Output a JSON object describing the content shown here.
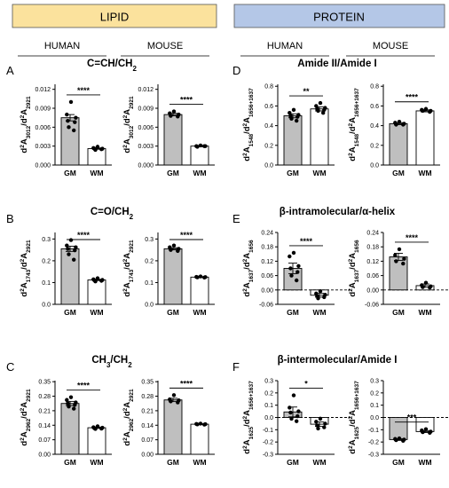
{
  "headers": {
    "lipid": "LIPID",
    "protein": "PROTEIN",
    "lipid_color": "#fbe29d",
    "protein_color": "#b4c7e7",
    "human": "HUMAN",
    "mouse": "MOUSE"
  },
  "colors": {
    "gm_bar": "#bfbfbf",
    "wm_bar": "#ffffff",
    "points": "#000000"
  },
  "chart_data": [
    {
      "id": "A-human",
      "panel": "A",
      "title": "C=CH/CH",
      "title_sub": "2",
      "species": "HUMAN",
      "type": "bar",
      "categories": [
        "GM",
        "WM"
      ],
      "values": [
        0.0075,
        0.0026
      ],
      "errors": [
        0.0005,
        0.0001
      ],
      "points": [
        [
          0.01,
          0.008,
          0.0075,
          0.007,
          0.0068,
          0.006,
          0.0055
        ],
        [
          0.0029,
          0.0027,
          0.0026,
          0.0026,
          0.0025,
          0.0024
        ]
      ],
      "ylabel_main": "d",
      "ylabel_sup": "2",
      "ylabel_mid": "A",
      "ylabel_sub": "3012",
      "ylabel_mid2": "/d",
      "ylabel_sup2": "2",
      "ylabel_mid3": "A",
      "ylabel_sub2": "2921",
      "ylim": [
        0,
        0.0128
      ],
      "ticks": [
        0,
        0.003,
        0.006,
        0.009,
        0.012
      ],
      "tick_labels": [
        "0.000",
        "0.003",
        "0.006",
        "0.009",
        "0.012"
      ],
      "significance": "****",
      "zero_line": false
    },
    {
      "id": "A-mouse",
      "panel": "",
      "title": "",
      "title_sub": "",
      "species": "MOUSE",
      "type": "bar",
      "categories": [
        "GM",
        "WM"
      ],
      "values": [
        0.008,
        0.003
      ],
      "errors": [
        0.0002,
        0.0001
      ],
      "points": [
        [
          0.0085,
          0.0082,
          0.008,
          0.0078,
          0.0077
        ],
        [
          0.0031,
          0.003,
          0.003,
          0.0029,
          0.003
        ]
      ],
      "ylabel_main": "d",
      "ylabel_sup": "2",
      "ylabel_mid": "A",
      "ylabel_sub": "3012",
      "ylabel_mid2": "/d",
      "ylabel_sup2": "2",
      "ylabel_mid3": "A",
      "ylabel_sub2": "2921",
      "ylim": [
        0,
        0.0128
      ],
      "ticks": [
        0,
        0.003,
        0.006,
        0.009,
        0.012
      ],
      "tick_labels": [
        "0.000",
        "0.003",
        "0.006",
        "0.009",
        "0.012"
      ],
      "significance": "****",
      "zero_line": false
    },
    {
      "id": "B-human",
      "panel": "B",
      "title": "C=O/CH",
      "title_sub": "2",
      "species": "HUMAN",
      "type": "bar",
      "categories": [
        "GM",
        "WM"
      ],
      "values": [
        0.255,
        0.112
      ],
      "errors": [
        0.012,
        0.003
      ],
      "points": [
        [
          0.295,
          0.27,
          0.262,
          0.255,
          0.248,
          0.23,
          0.205
        ],
        [
          0.12,
          0.115,
          0.112,
          0.11,
          0.108,
          0.105
        ]
      ],
      "ylabel_main": "d",
      "ylabel_sup": "2",
      "ylabel_mid": "A",
      "ylabel_sub": "1743",
      "ylabel_mid2": "/d",
      "ylabel_sup2": "2",
      "ylabel_mid3": "A",
      "ylabel_sub2": "2921",
      "ylim": [
        0,
        0.33
      ],
      "ticks": [
        0,
        0.1,
        0.2,
        0.3
      ],
      "tick_labels": [
        "0.0",
        "0.1",
        "0.2",
        "0.3"
      ],
      "significance": "****",
      "zero_line": false
    },
    {
      "id": "B-mouse",
      "panel": "",
      "title": "",
      "title_sub": "",
      "species": "MOUSE",
      "type": "bar",
      "categories": [
        "GM",
        "WM"
      ],
      "values": [
        0.255,
        0.125
      ],
      "errors": [
        0.005,
        0.002
      ],
      "points": [
        [
          0.27,
          0.262,
          0.255,
          0.25,
          0.245
        ],
        [
          0.128,
          0.126,
          0.125,
          0.124,
          0.123
        ]
      ],
      "ylabel_main": "d",
      "ylabel_sup": "2",
      "ylabel_mid": "A",
      "ylabel_sub": "1743",
      "ylabel_mid2": "/d",
      "ylabel_sup2": "2",
      "ylabel_mid3": "A",
      "ylabel_sub2": "2921",
      "ylim": [
        0,
        0.33
      ],
      "ticks": [
        0,
        0.1,
        0.2,
        0.3
      ],
      "tick_labels": [
        "0.0",
        "0.1",
        "0.2",
        "0.3"
      ],
      "significance": "****",
      "zero_line": false
    },
    {
      "id": "C-human",
      "panel": "C",
      "title": "CH",
      "title_sub": "3",
      "title_rest": "/CH",
      "title_sub2": "2",
      "species": "HUMAN",
      "type": "bar",
      "categories": [
        "GM",
        "WM"
      ],
      "values": [
        0.245,
        0.128
      ],
      "errors": [
        0.01,
        0.003
      ],
      "points": [
        [
          0.275,
          0.262,
          0.25,
          0.245,
          0.238,
          0.23,
          0.22
        ],
        [
          0.135,
          0.13,
          0.128,
          0.126,
          0.124,
          0.122
        ]
      ],
      "ylabel_main": "d",
      "ylabel_sup": "2",
      "ylabel_mid": "A",
      "ylabel_sub": "2962",
      "ylabel_mid2": "/d",
      "ylabel_sup2": "2",
      "ylabel_mid3": "A",
      "ylabel_sub2": "2921",
      "ylim": [
        0,
        0.355
      ],
      "ticks": [
        0,
        0.07,
        0.14,
        0.21,
        0.28,
        0.35
      ],
      "tick_labels": [
        "0.00",
        "0.07",
        "0.14",
        "0.21",
        "0.28",
        "0.35"
      ],
      "significance": "****",
      "zero_line": false
    },
    {
      "id": "C-mouse",
      "panel": "",
      "title": "",
      "title_sub": "",
      "species": "MOUSE",
      "type": "bar",
      "categories": [
        "GM",
        "WM"
      ],
      "values": [
        0.262,
        0.145
      ],
      "errors": [
        0.008,
        0.002
      ],
      "points": [
        [
          0.285,
          0.265,
          0.26,
          0.255,
          0.25
        ],
        [
          0.148,
          0.146,
          0.145,
          0.144,
          0.143
        ]
      ],
      "ylabel_main": "d",
      "ylabel_sup": "2",
      "ylabel_mid": "A",
      "ylabel_sub": "2962",
      "ylabel_mid2": "/d",
      "ylabel_sup2": "2",
      "ylabel_mid3": "A",
      "ylabel_sub2": "2921",
      "ylim": [
        0,
        0.355
      ],
      "ticks": [
        0,
        0.07,
        0.14,
        0.21,
        0.28,
        0.35
      ],
      "tick_labels": [
        "0.00",
        "0.07",
        "0.14",
        "0.21",
        "0.28",
        "0.35"
      ],
      "significance": "****",
      "zero_line": false
    },
    {
      "id": "D-human",
      "panel": "D",
      "title": "Amide II/Amide I",
      "title_sub": "",
      "species": "HUMAN",
      "type": "bar",
      "categories": [
        "GM",
        "WM"
      ],
      "values": [
        0.5,
        0.57
      ],
      "errors": [
        0.02,
        0.02
      ],
      "points": [
        [
          0.56,
          0.53,
          0.51,
          0.5,
          0.49,
          0.47,
          0.45
        ],
        [
          0.63,
          0.6,
          0.58,
          0.57,
          0.56,
          0.55,
          0.53
        ]
      ],
      "ylabel_main": "d",
      "ylabel_sup": "2",
      "ylabel_mid": "A",
      "ylabel_sub": "1548",
      "ylabel_mid2": "/d",
      "ylabel_sup2": "2",
      "ylabel_mid3": "A",
      "ylabel_sub2": "1656+1637",
      "ylim": [
        0,
        0.82
      ],
      "ticks": [
        0,
        0.2,
        0.4,
        0.6,
        0.8
      ],
      "tick_labels": [
        "0.0",
        "0.2",
        "0.4",
        "0.6",
        "0.8"
      ],
      "significance": "**",
      "zero_line": false
    },
    {
      "id": "D-mouse",
      "panel": "",
      "title": "",
      "title_sub": "",
      "species": "MOUSE",
      "type": "bar",
      "categories": [
        "GM",
        "WM"
      ],
      "values": [
        0.42,
        0.55
      ],
      "errors": [
        0.01,
        0.01
      ],
      "points": [
        [
          0.44,
          0.43,
          0.42,
          0.41,
          0.41
        ],
        [
          0.57,
          0.56,
          0.55,
          0.55,
          0.54
        ]
      ],
      "ylabel_main": "d",
      "ylabel_sup": "2",
      "ylabel_mid": "A",
      "ylabel_sub": "1548",
      "ylabel_mid2": "/d",
      "ylabel_sup2": "2",
      "ylabel_mid3": "A",
      "ylabel_sub2": "1656+1637",
      "ylim": [
        0,
        0.82
      ],
      "ticks": [
        0,
        0.2,
        0.4,
        0.6,
        0.8
      ],
      "tick_labels": [
        "0.0",
        "0.2",
        "0.4",
        "0.6",
        "0.8"
      ],
      "significance": "****",
      "zero_line": false
    },
    {
      "id": "E-human",
      "panel": "E",
      "title": "β-intramolecular/α-helix",
      "title_sub": "",
      "species": "HUMAN",
      "type": "bar",
      "categories": [
        "GM",
        "WM"
      ],
      "values": [
        0.09,
        -0.022
      ],
      "errors": [
        0.022,
        0.008
      ],
      "points": [
        [
          0.155,
          0.14,
          0.1,
          0.09,
          0.075,
          0.06,
          0.04
        ],
        [
          -0.005,
          -0.015,
          -0.02,
          -0.025,
          -0.03,
          -0.035
        ]
      ],
      "ylabel_main": "d",
      "ylabel_sup": "2",
      "ylabel_mid": "A",
      "ylabel_sub": "1637",
      "ylabel_mid2": "/d",
      "ylabel_sup2": "2",
      "ylabel_mid3": "A",
      "ylabel_sub2": "1656",
      "ylim": [
        -0.06,
        0.24
      ],
      "ticks": [
        -0.06,
        0,
        0.06,
        0.12,
        0.18,
        0.24
      ],
      "tick_labels": [
        "-0.06",
        "0.00",
        "0.06",
        "0.12",
        "0.18",
        "0.24"
      ],
      "significance": "****",
      "zero_line": true
    },
    {
      "id": "E-mouse",
      "panel": "",
      "title": "",
      "title_sub": "",
      "species": "MOUSE",
      "type": "bar",
      "categories": [
        "GM",
        "WM"
      ],
      "values": [
        0.138,
        0.018
      ],
      "errors": [
        0.015,
        0.007
      ],
      "points": [
        [
          0.17,
          0.145,
          0.13,
          0.12,
          0.11
        ],
        [
          0.03,
          0.02,
          0.015,
          0.012,
          0.01
        ]
      ],
      "ylabel_main": "d",
      "ylabel_sup": "2",
      "ylabel_mid": "A",
      "ylabel_sub": "1637",
      "ylabel_mid2": "/d",
      "ylabel_sup2": "2",
      "ylabel_mid3": "A",
      "ylabel_sub2": "1656",
      "ylim": [
        -0.06,
        0.24
      ],
      "ticks": [
        -0.06,
        0,
        0.06,
        0.12,
        0.18,
        0.24
      ],
      "tick_labels": [
        "-0.06",
        "0.00",
        "0.06",
        "0.12",
        "0.18",
        "0.24"
      ],
      "significance": "****",
      "zero_line": true
    },
    {
      "id": "F-human",
      "panel": "F",
      "title": "β-intermolecular/Amide I",
      "title_sub": "",
      "species": "HUMAN",
      "type": "bar",
      "categories": [
        "GM",
        "WM"
      ],
      "values": [
        0.045,
        -0.055
      ],
      "errors": [
        0.04,
        0.018
      ],
      "points": [
        [
          0.18,
          0.08,
          0.05,
          0.04,
          0.01,
          -0.01,
          -0.03
        ],
        [
          -0.01,
          -0.035,
          -0.05,
          -0.065,
          -0.08,
          -0.09
        ]
      ],
      "ylabel_main": "d",
      "ylabel_sup": "2",
      "ylabel_mid": "A",
      "ylabel_sub": "1625",
      "ylabel_mid2": "/d",
      "ylabel_sup2": "2",
      "ylabel_mid3": "A",
      "ylabel_sub2": "1656+1637",
      "ylim": [
        -0.3,
        0.3
      ],
      "ticks": [
        -0.3,
        -0.2,
        -0.1,
        0,
        0.1,
        0.2,
        0.3
      ],
      "tick_labels": [
        "-0.3",
        "-0.2",
        "-0.1",
        "0.0",
        "0.1",
        "0.2",
        "0.3"
      ],
      "significance": "*",
      "zero_line": true
    },
    {
      "id": "F-mouse",
      "panel": "",
      "title": "",
      "title_sub": "",
      "species": "MOUSE",
      "type": "bar",
      "categories": [
        "GM",
        "WM"
      ],
      "values": [
        -0.18,
        -0.115
      ],
      "errors": [
        0.007,
        0.008
      ],
      "points": [
        [
          -0.17,
          -0.175,
          -0.18,
          -0.185,
          -0.19
        ],
        [
          -0.095,
          -0.105,
          -0.115,
          -0.12,
          -0.125
        ]
      ],
      "ylabel_main": "d",
      "ylabel_sup": "2",
      "ylabel_mid": "A",
      "ylabel_sub": "1625",
      "ylabel_mid2": "/d",
      "ylabel_sup2": "2",
      "ylabel_mid3": "A",
      "ylabel_sub2": "1656+1637",
      "ylim": [
        -0.3,
        0.3
      ],
      "ticks": [
        -0.3,
        -0.2,
        -0.1,
        0,
        0.1,
        0.2,
        0.3
      ],
      "tick_labels": [
        "-0.3",
        "-0.2",
        "-0.1",
        "0.0",
        "0.1",
        "0.2",
        "0.3"
      ],
      "significance": "***",
      "zero_line": true
    }
  ]
}
